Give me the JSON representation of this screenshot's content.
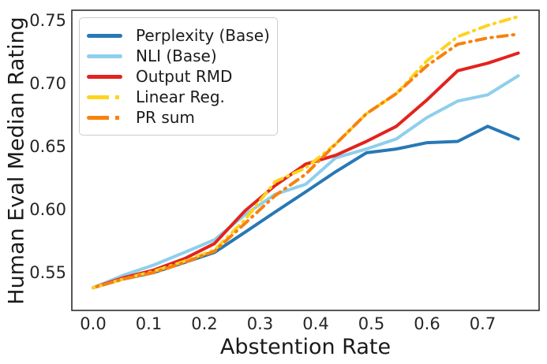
{
  "chart_data": {
    "type": "line",
    "title": "",
    "xlabel": "Abstention Rate",
    "ylabel": "Human Eval Median Rating",
    "xlim": [
      -0.0383,
      0.8014
    ],
    "ylim": [
      0.52,
      0.758
    ],
    "grid": false,
    "legend_position": "upper left",
    "xticks": [
      {
        "value": 0.0,
        "label": "0.0"
      },
      {
        "value": 0.1,
        "label": "0.1"
      },
      {
        "value": 0.2,
        "label": "0.2"
      },
      {
        "value": 0.3,
        "label": "0.3"
      },
      {
        "value": 0.4,
        "label": "0.4"
      },
      {
        "value": 0.5,
        "label": "0.5"
      },
      {
        "value": 0.6,
        "label": "0.6"
      },
      {
        "value": 0.7,
        "label": "0.7"
      }
    ],
    "yticks": [
      {
        "value": 0.55,
        "label": "0.55"
      },
      {
        "value": 0.6,
        "label": "0.60"
      },
      {
        "value": 0.65,
        "label": "0.65"
      },
      {
        "value": 0.7,
        "label": "0.70"
      },
      {
        "value": 0.75,
        "label": "0.75"
      }
    ],
    "x": [
      0.0,
      0.055,
      0.109,
      0.164,
      0.218,
      0.273,
      0.327,
      0.382,
      0.436,
      0.491,
      0.545,
      0.6,
      0.655,
      0.709,
      0.764
    ],
    "series": [
      {
        "name": "perplexity-base",
        "label": "Perplexity (Base)",
        "color": "#2878b5",
        "dash": "solid",
        "values": [
          0.538,
          0.545,
          0.55,
          0.558,
          0.566,
          0.582,
          0.598,
          0.614,
          0.63,
          0.645,
          0.648,
          0.653,
          0.654,
          0.666,
          0.656
        ]
      },
      {
        "name": "nli-base",
        "label": "NLI (Base)",
        "color": "#8ecfec",
        "dash": "solid",
        "values": [
          0.538,
          0.548,
          0.556,
          0.566,
          0.576,
          0.596,
          0.612,
          0.62,
          0.641,
          0.648,
          0.656,
          0.673,
          0.686,
          0.691,
          0.706
        ]
      },
      {
        "name": "output-rmd",
        "label": "Output RMD",
        "color": "#e3231e",
        "dash": "solid",
        "values": [
          0.538,
          0.546,
          0.552,
          0.561,
          0.573,
          0.599,
          0.619,
          0.636,
          0.643,
          0.654,
          0.666,
          0.687,
          0.71,
          0.716,
          0.724
        ]
      },
      {
        "name": "linear-reg",
        "label": "Linear Reg.",
        "color": "#ffd31e",
        "dash": "dashdot",
        "values": [
          0.538,
          0.545,
          0.551,
          0.559,
          0.568,
          0.592,
          0.622,
          0.633,
          0.652,
          0.676,
          0.692,
          0.718,
          0.737,
          0.746,
          0.753
        ]
      },
      {
        "name": "pr-sum",
        "label": "PR sum",
        "color": "#f7820e",
        "dash": "dashdot",
        "values": [
          0.538,
          0.545,
          0.55,
          0.558,
          0.567,
          0.589,
          0.611,
          0.628,
          0.652,
          0.676,
          0.692,
          0.714,
          0.731,
          0.736,
          0.739
        ]
      }
    ]
  }
}
